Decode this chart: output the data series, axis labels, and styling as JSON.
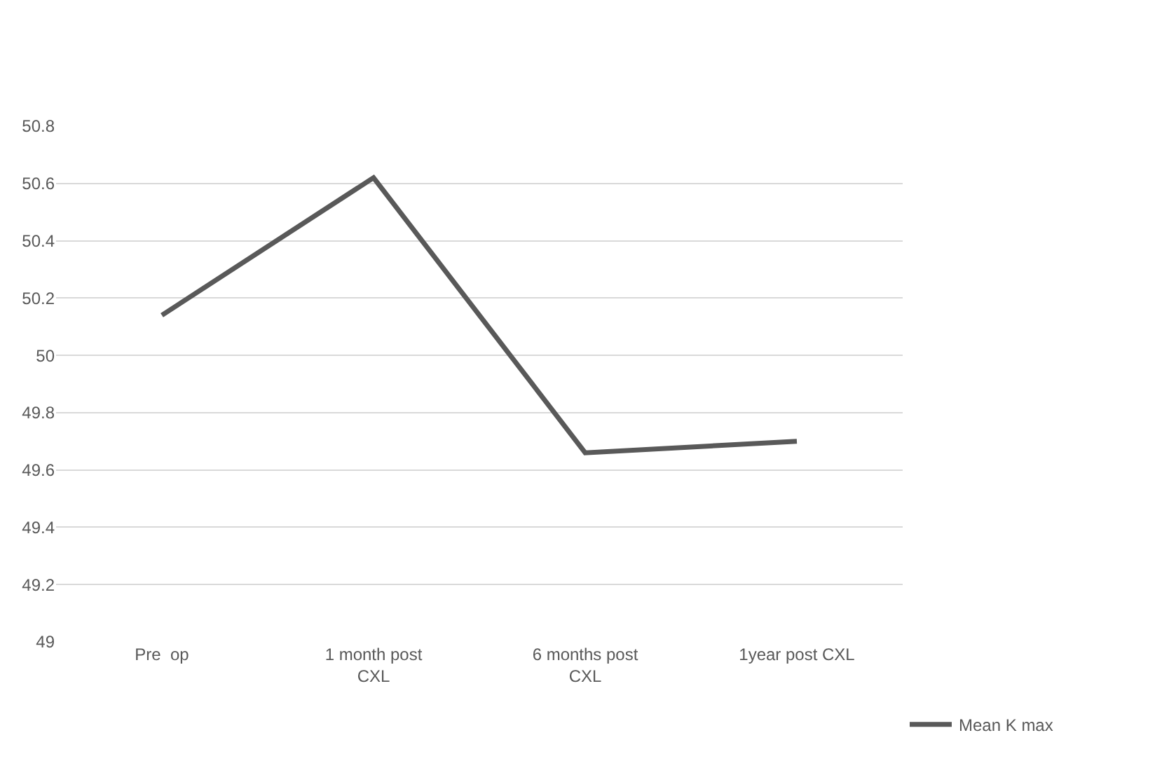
{
  "chart_data": {
    "type": "line",
    "categories": [
      "Pre  op",
      "1 month post CXL",
      "6 months post CXL",
      "1year post CXL"
    ],
    "series": [
      {
        "name": "Mean K max",
        "color": "#595959",
        "values": [
          50.14,
          50.62,
          49.66,
          49.7
        ]
      }
    ],
    "ylim": [
      49,
      50.8
    ],
    "yticks": [
      49,
      49.2,
      49.4,
      49.6,
      49.8,
      50,
      50.2,
      50.4,
      50.6,
      50.8
    ],
    "grid": "y",
    "legend": "bottom right",
    "marker": "none",
    "line_style": "solid"
  }
}
